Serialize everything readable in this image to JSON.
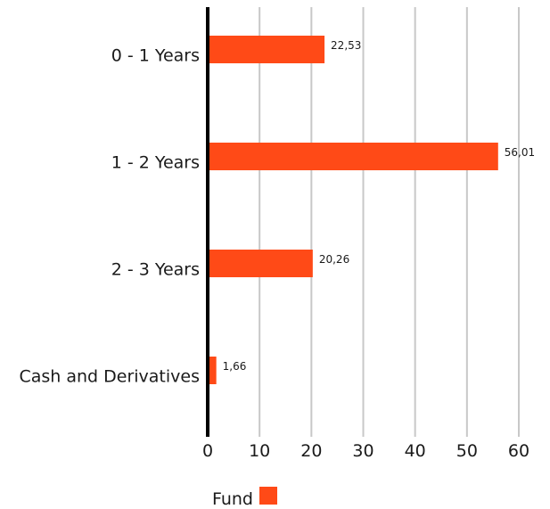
{
  "chart_data": {
    "type": "bar",
    "orientation": "horizontal",
    "categories": [
      "0 - 1 Years",
      "1 - 2 Years",
      "2 - 3 Years",
      "Cash and Derivatives"
    ],
    "series": [
      {
        "name": "Fund",
        "values": [
          22.53,
          56.01,
          20.26,
          1.66
        ],
        "color": "#ff4a17"
      }
    ],
    "data_labels": [
      "22,53",
      "56,01",
      "20,26",
      "1,66"
    ],
    "xlim": [
      0,
      60
    ],
    "ticks": [
      0,
      10,
      20,
      30,
      40,
      50,
      60
    ],
    "tick_labels": [
      "0",
      "10",
      "20",
      "30",
      "40",
      "50",
      "60"
    ],
    "grid": "vertical",
    "grid_color": "#c8c8c8",
    "axis_color": "#000000",
    "legend_position": "bottom",
    "legend_label": "Fund"
  }
}
